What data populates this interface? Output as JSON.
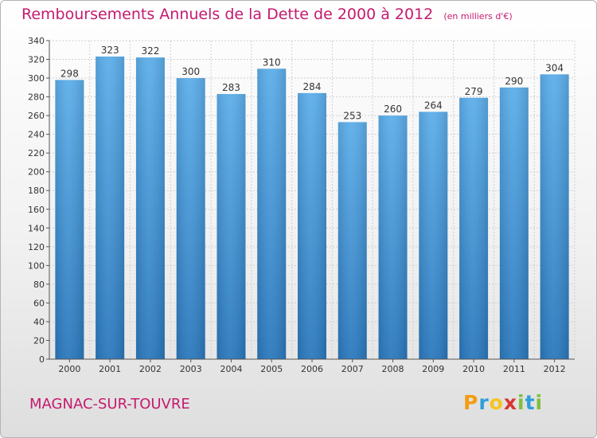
{
  "title": "Remboursements Annuels de la Dette de 2000 à 2012",
  "unit_note": "(en milliers d'€)",
  "commune": "MAGNAC-SUR-TOUVRE",
  "brand": {
    "letters": [
      "P",
      "r",
      "o",
      "x",
      "i",
      "t",
      "i"
    ],
    "colors": [
      "#f39c12",
      "#2e9fd8",
      "#f7c41f",
      "#d9352f",
      "#7fbf3c",
      "#2e9fd8",
      "#7fbf3c"
    ]
  },
  "colors": {
    "accent": "#c51a6e",
    "bar_top": "#5caeea",
    "bar_bottom": "#2a78bd",
    "grid": "#d0d0d0",
    "axis": "#555555"
  },
  "chart_data": {
    "type": "bar",
    "categories": [
      "2000",
      "2001",
      "2002",
      "2003",
      "2004",
      "2005",
      "2006",
      "2007",
      "2008",
      "2009",
      "2010",
      "2011",
      "2012"
    ],
    "values": [
      298,
      323,
      322,
      300,
      283,
      310,
      284,
      253,
      260,
      264,
      279,
      290,
      304
    ],
    "title": "Remboursements Annuels de la Dette de 2000 à 2012",
    "ylim": [
      0,
      340
    ],
    "yticks": [
      0,
      20,
      40,
      60,
      80,
      100,
      120,
      140,
      160,
      180,
      200,
      220,
      240,
      260,
      280,
      300,
      320,
      340
    ],
    "grid": true,
    "data_labels": true,
    "legend": "none"
  }
}
